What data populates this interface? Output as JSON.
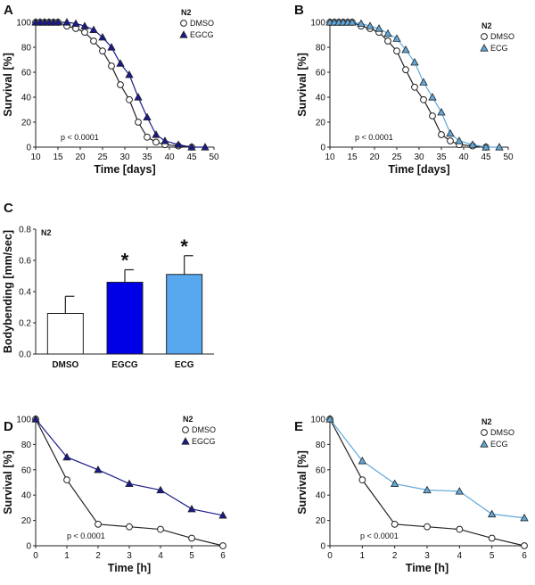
{
  "colors": {
    "dmso": "#ffffff",
    "egcg": "#1a1a8c",
    "ecg": "#5fa8d9",
    "egcg_bar": "#0000e6",
    "ecg_bar": "#58a8f0",
    "line": "#222222"
  },
  "chart_data": [
    {
      "id": "A",
      "type": "line",
      "panel_label": "A",
      "ylabel": "Survival [%]",
      "xlabel": "Time [days]",
      "xlim": [
        10,
        50
      ],
      "ylim": [
        0,
        100
      ],
      "xticks": [
        "10",
        "15",
        "20",
        "25",
        "30",
        "35",
        "40",
        "45",
        "50"
      ],
      "yticks": [
        "0",
        "20",
        "40",
        "60",
        "80",
        "100"
      ],
      "legend_title": "N2",
      "pvalue": "p < 0.0001",
      "series": [
        {
          "name": "DMSO",
          "marker": "circle",
          "x": [
            10,
            11,
            12,
            13,
            14,
            15,
            17,
            19,
            21,
            23,
            25,
            27,
            29,
            31,
            33,
            35,
            37,
            39,
            42,
            45
          ],
          "y": [
            100,
            100,
            100,
            100,
            100,
            100,
            97,
            95,
            92,
            85,
            77,
            65,
            50,
            38,
            20,
            8,
            4,
            2,
            1,
            0
          ]
        },
        {
          "name": "EGCG",
          "marker": "triangle",
          "x": [
            10,
            11,
            12,
            13,
            14,
            15,
            17,
            19,
            21,
            23,
            25,
            27,
            29,
            31,
            33,
            35,
            37,
            39,
            42,
            45,
            48
          ],
          "y": [
            100,
            100,
            100,
            100,
            100,
            100,
            100,
            99,
            97,
            94,
            88,
            80,
            67,
            58,
            40,
            24,
            10,
            5,
            2,
            0,
            0
          ]
        }
      ]
    },
    {
      "id": "B",
      "type": "line",
      "panel_label": "B",
      "ylabel": "Survival [%]",
      "xlabel": "Time [days]",
      "xlim": [
        10,
        50
      ],
      "ylim": [
        0,
        100
      ],
      "xticks": [
        "10",
        "15",
        "20",
        "25",
        "30",
        "35",
        "40",
        "45",
        "50"
      ],
      "yticks": [
        "0",
        "20",
        "40",
        "60",
        "80",
        "100"
      ],
      "legend_title": "N2",
      "pvalue": "p < 0.0001",
      "series": [
        {
          "name": "DMSO",
          "marker": "circle",
          "x": [
            10,
            11,
            12,
            13,
            14,
            15,
            17,
            19,
            21,
            23,
            25,
            27,
            29,
            31,
            33,
            35,
            37,
            39,
            42,
            45
          ],
          "y": [
            100,
            100,
            100,
            100,
            100,
            100,
            97,
            95,
            92,
            85,
            77,
            62,
            48,
            38,
            25,
            10,
            5,
            2,
            1,
            0
          ]
        },
        {
          "name": "ECG",
          "marker": "triangle",
          "x": [
            10,
            11,
            12,
            13,
            14,
            15,
            17,
            19,
            21,
            23,
            25,
            27,
            29,
            31,
            33,
            35,
            37,
            39,
            42,
            45,
            48
          ],
          "y": [
            100,
            100,
            100,
            100,
            100,
            100,
            99,
            97,
            95,
            91,
            87,
            78,
            68,
            52,
            40,
            28,
            11,
            5,
            2,
            0,
            0
          ]
        }
      ]
    },
    {
      "id": "C",
      "type": "bar",
      "panel_label": "C",
      "ylabel": "Bodybending [mm/sec]",
      "xlabel": "",
      "ylim": [
        0,
        0.8
      ],
      "yticks": [
        "0.0",
        "0.2",
        "0.4",
        "0.6",
        "0.8"
      ],
      "legend_title": "N2",
      "categories": [
        "DMSO",
        "EGCG",
        "ECG"
      ],
      "values": [
        0.26,
        0.46,
        0.51
      ],
      "errors": [
        0.11,
        0.08,
        0.12
      ],
      "significance": [
        "",
        "*",
        "*"
      ]
    },
    {
      "id": "D",
      "type": "line",
      "panel_label": "D",
      "ylabel": "Survival [%]",
      "xlabel": "Time [h]",
      "xlim": [
        0,
        6
      ],
      "ylim": [
        0,
        100
      ],
      "xticks": [
        "0",
        "1",
        "2",
        "3",
        "4",
        "5",
        "6"
      ],
      "yticks": [
        "0",
        "20",
        "40",
        "60",
        "80",
        "100"
      ],
      "legend_title": "N2",
      "pvalue": "p < 0.0001",
      "series": [
        {
          "name": "DMSO",
          "marker": "circle",
          "x": [
            0,
            1,
            2,
            3,
            4,
            5,
            6
          ],
          "y": [
            100,
            52,
            17,
            15,
            13,
            6,
            0
          ]
        },
        {
          "name": "EGCG",
          "marker": "triangle",
          "x": [
            0,
            1,
            2,
            3,
            4,
            5,
            6
          ],
          "y": [
            100,
            70,
            60,
            49,
            44,
            29,
            24
          ]
        }
      ]
    },
    {
      "id": "E",
      "type": "line",
      "panel_label": "E",
      "ylabel": "Survival [%]",
      "xlabel": "Time [h]",
      "xlim": [
        0,
        6
      ],
      "ylim": [
        0,
        100
      ],
      "xticks": [
        "0",
        "1",
        "2",
        "3",
        "4",
        "5",
        "6"
      ],
      "yticks": [
        "0",
        "20",
        "40",
        "60",
        "80",
        "100"
      ],
      "legend_title": "N2",
      "pvalue": "p < 0.0001",
      "series": [
        {
          "name": "DMSO",
          "marker": "circle",
          "x": [
            0,
            1,
            2,
            3,
            4,
            5,
            6
          ],
          "y": [
            100,
            52,
            17,
            15,
            13,
            6,
            0
          ]
        },
        {
          "name": "ECG",
          "marker": "triangle",
          "x": [
            0,
            1,
            2,
            3,
            4,
            5,
            6
          ],
          "y": [
            100,
            67,
            49,
            44,
            43,
            25,
            22
          ]
        }
      ]
    }
  ]
}
